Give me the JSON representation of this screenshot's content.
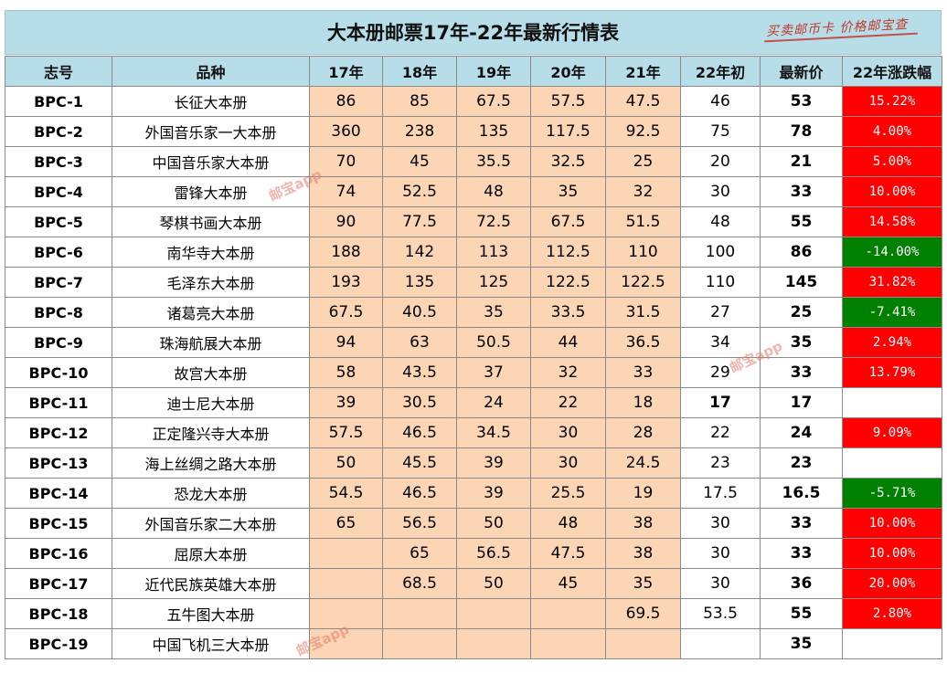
{
  "title": "大本册邮票17年-22年最新行情表",
  "stamp": "买卖邮币卡 价格邮宝查",
  "watermark": "邮宝app",
  "headers": [
    "志号",
    "品种",
    "17年",
    "18年",
    "19年",
    "20年",
    "21年",
    "22年初",
    "最新价",
    "22年涨跌幅"
  ],
  "rows": [
    {
      "code": "BPC-1",
      "name": "长征大本册",
      "y17": "86",
      "y18": "85",
      "y19": "67.5",
      "y20": "57.5",
      "y21": "47.5",
      "init": "46",
      "latest": "53",
      "change": "15.22%",
      "dir": "up"
    },
    {
      "code": "BPC-2",
      "name": "外国音乐家一大本册",
      "y17": "360",
      "y18": "238",
      "y19": "135",
      "y20": "117.5",
      "y21": "92.5",
      "init": "75",
      "latest": "78",
      "change": "4.00%",
      "dir": "up"
    },
    {
      "code": "BPC-3",
      "name": "中国音乐家大本册",
      "y17": "70",
      "y18": "45",
      "y19": "35.5",
      "y20": "32.5",
      "y21": "25",
      "init": "20",
      "latest": "21",
      "change": "5.00%",
      "dir": "up"
    },
    {
      "code": "BPC-4",
      "name": "雷锋大本册",
      "y17": "74",
      "y18": "52.5",
      "y19": "48",
      "y20": "35",
      "y21": "32",
      "init": "30",
      "latest": "33",
      "change": "10.00%",
      "dir": "up"
    },
    {
      "code": "BPC-5",
      "name": "琴棋书画大本册",
      "y17": "90",
      "y18": "77.5",
      "y19": "72.5",
      "y20": "67.5",
      "y21": "51.5",
      "init": "48",
      "latest": "55",
      "change": "14.58%",
      "dir": "up"
    },
    {
      "code": "BPC-6",
      "name": "南华寺大本册",
      "y17": "188",
      "y18": "142",
      "y19": "113",
      "y20": "112.5",
      "y21": "110",
      "init": "100",
      "latest": "86",
      "change": "-14.00%",
      "dir": "down"
    },
    {
      "code": "BPC-7",
      "name": "毛泽东大本册",
      "y17": "193",
      "y18": "135",
      "y19": "125",
      "y20": "122.5",
      "y21": "122.5",
      "init": "110",
      "latest": "145",
      "change": "31.82%",
      "dir": "up"
    },
    {
      "code": "BPC-8",
      "name": "诸葛亮大本册",
      "y17": "67.5",
      "y18": "40.5",
      "y19": "35",
      "y20": "33.5",
      "y21": "31.5",
      "init": "27",
      "latest": "25",
      "change": "-7.41%",
      "dir": "down"
    },
    {
      "code": "BPC-9",
      "name": "珠海航展大本册",
      "y17": "94",
      "y18": "63",
      "y19": "50.5",
      "y20": "44",
      "y21": "36.5",
      "init": "34",
      "latest": "35",
      "change": "2.94%",
      "dir": "up"
    },
    {
      "code": "BPC-10",
      "name": "故宫大本册",
      "y17": "58",
      "y18": "43.5",
      "y19": "37",
      "y20": "32",
      "y21": "33",
      "init": "29",
      "latest": "33",
      "change": "13.79%",
      "dir": "up"
    },
    {
      "code": "BPC-11",
      "name": "迪士尼大本册",
      "y17": "39",
      "y18": "30.5",
      "y19": "24",
      "y20": "22",
      "y21": "18",
      "init": "17",
      "latest": "17",
      "change": "",
      "dir": "none",
      "initBold": true
    },
    {
      "code": "BPC-12",
      "name": "正定隆兴寺大本册",
      "y17": "57.5",
      "y18": "46.5",
      "y19": "34.5",
      "y20": "30",
      "y21": "28",
      "init": "22",
      "latest": "24",
      "change": "9.09%",
      "dir": "up"
    },
    {
      "code": "BPC-13",
      "name": "海上丝绸之路大本册",
      "y17": "50",
      "y18": "45.5",
      "y19": "39",
      "y20": "30",
      "y21": "24.5",
      "init": "23",
      "latest": "23",
      "change": "",
      "dir": "none"
    },
    {
      "code": "BPC-14",
      "name": "恐龙大本册",
      "y17": "54.5",
      "y18": "46.5",
      "y19": "39",
      "y20": "25.5",
      "y21": "19",
      "init": "17.5",
      "latest": "16.5",
      "change": "-5.71%",
      "dir": "down"
    },
    {
      "code": "BPC-15",
      "name": "外国音乐家二大本册",
      "y17": "65",
      "y18": "56.5",
      "y19": "50",
      "y20": "48",
      "y21": "38",
      "init": "30",
      "latest": "33",
      "change": "10.00%",
      "dir": "up"
    },
    {
      "code": "BPC-16",
      "name": "屈原大本册",
      "y17": "",
      "y18": "65",
      "y19": "56.5",
      "y20": "47.5",
      "y21": "38",
      "init": "30",
      "latest": "33",
      "change": "10.00%",
      "dir": "up"
    },
    {
      "code": "BPC-17",
      "name": "近代民族英雄大本册",
      "y17": "",
      "y18": "68.5",
      "y19": "50",
      "y20": "45",
      "y21": "35",
      "init": "30",
      "latest": "36",
      "change": "20.00%",
      "dir": "up"
    },
    {
      "code": "BPC-18",
      "name": "五牛图大本册",
      "y17": "",
      "y18": "",
      "y19": "",
      "y20": "",
      "y21": "69.5",
      "init": "53.5",
      "latest": "55",
      "change": "2.80%",
      "dir": "up"
    },
    {
      "code": "BPC-19",
      "name": "中国飞机三大本册",
      "y17": "",
      "y18": "",
      "y19": "",
      "y20": "",
      "y21": "",
      "init": "",
      "latest": "35",
      "change": "",
      "dir": "none"
    }
  ],
  "colors": {
    "header_bg": "#b7dde8",
    "year_bg": "#fcd5b4",
    "up": "#ff0000",
    "down": "#008000"
  }
}
